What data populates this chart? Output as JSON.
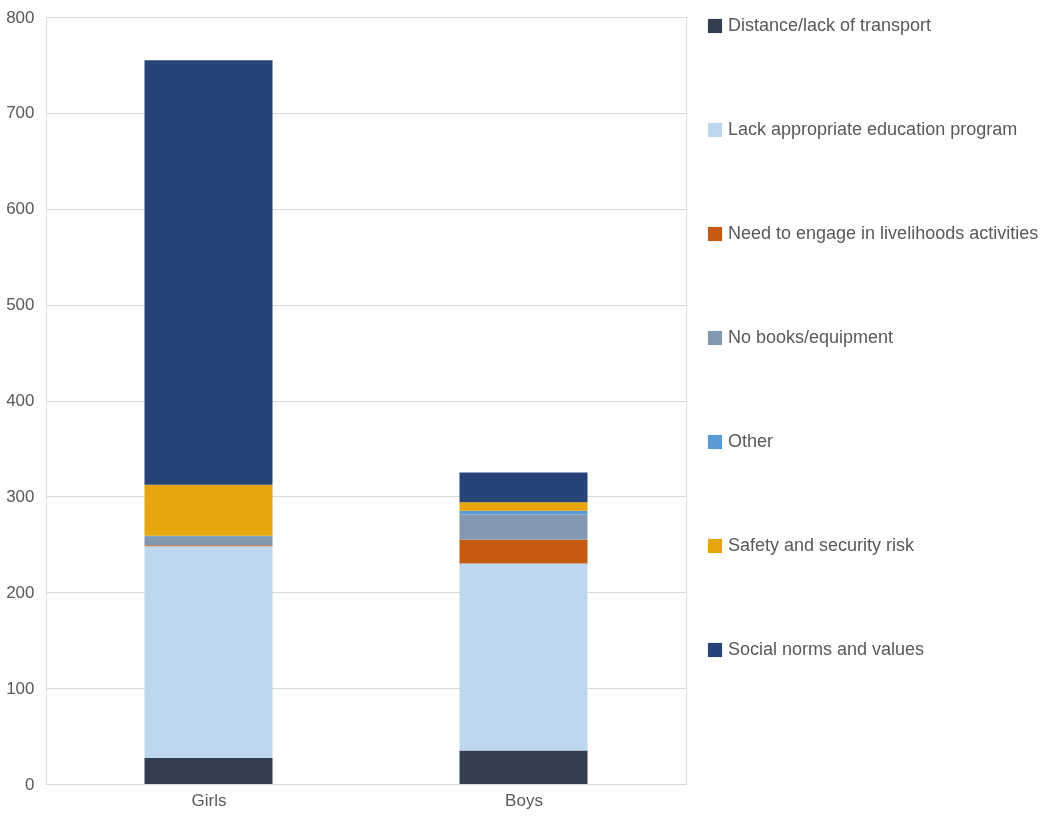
{
  "chart_data": {
    "type": "bar",
    "stacked": true,
    "categories": [
      "Girls",
      "Boys"
    ],
    "series": [
      {
        "name": "Distance/lack of transport",
        "color": "#333f50",
        "values": [
          27,
          35
        ]
      },
      {
        "name": "Lack appropriate education program",
        "color": "#bdd7ee",
        "values": [
          221,
          195
        ]
      },
      {
        "name": "Need to engage in livelihoods activities",
        "color": "#c55a11",
        "values": [
          1,
          25
        ]
      },
      {
        "name": "No books/equipment",
        "color": "#8497b0",
        "values": [
          9,
          26
        ]
      },
      {
        "name": "Other",
        "color": "#5b9bd5",
        "values": [
          1,
          4
        ]
      },
      {
        "name": "Safety and security risk",
        "color": "#e7a60d",
        "values": [
          53,
          9
        ]
      },
      {
        "name": "Social norms and values",
        "color": "#264478",
        "values": [
          443,
          31
        ]
      }
    ],
    "ylim": [
      0,
      800
    ],
    "yticks": [
      0,
      100,
      200,
      300,
      400,
      500,
      600,
      700,
      800
    ],
    "grid": "y",
    "legend": "right"
  }
}
